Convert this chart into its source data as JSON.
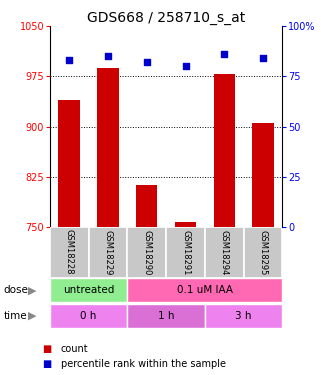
{
  "title": "GDS668 / 258710_s_at",
  "samples": [
    "GSM18228",
    "GSM18229",
    "GSM18290",
    "GSM18291",
    "GSM18294",
    "GSM18295"
  ],
  "bar_values": [
    940,
    988,
    812,
    758,
    978,
    905
  ],
  "dot_values": [
    83,
    85,
    82,
    80,
    86,
    84
  ],
  "bar_color": "#cc0000",
  "dot_color": "#0000cc",
  "ylim_left": [
    750,
    1050
  ],
  "ylim_right": [
    0,
    100
  ],
  "yticks_left": [
    750,
    825,
    900,
    975,
    1050
  ],
  "yticks_right": [
    0,
    25,
    50,
    75,
    100
  ],
  "ytick_labels_right": [
    "0",
    "25",
    "50",
    "75",
    "100%"
  ],
  "grid_lines": [
    825,
    900,
    975
  ],
  "dose_green": "#90ee90",
  "dose_pink": "#ff69b4",
  "time_pink": "#ee82ee",
  "time_orchid": "#da70d6",
  "legend_count_color": "#cc0000",
  "legend_pct_color": "#0000cc",
  "bg_gray": "#c8c8c8",
  "title_fontsize": 10,
  "tick_label_fontsize": 7,
  "sample_fontsize": 6,
  "annot_fontsize": 7.5
}
